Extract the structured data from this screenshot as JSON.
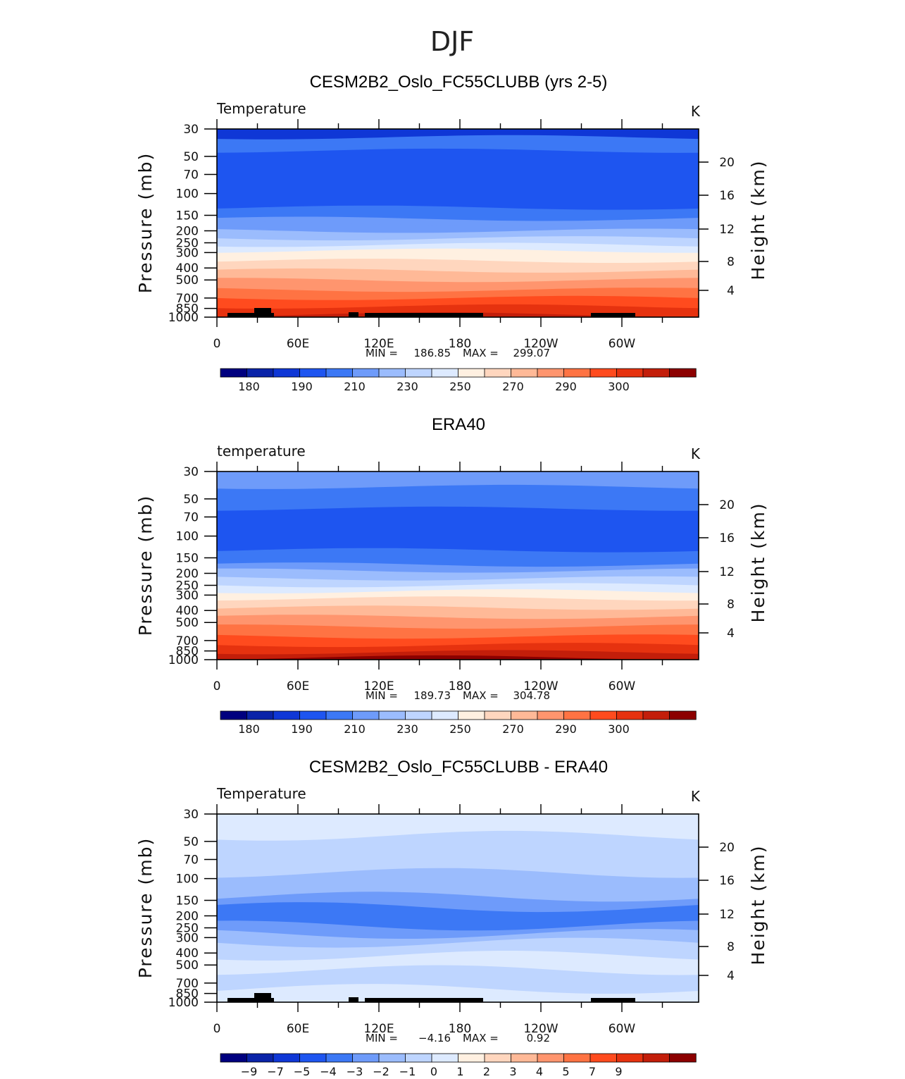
{
  "figure_title": "DJF",
  "palette": [
    "#00007f",
    "#0a23a8",
    "#0f37d6",
    "#1e55f0",
    "#3c78f5",
    "#6e9bfa",
    "#9bbcfd",
    "#bed5ff",
    "#ddeaff",
    "#fff0e1",
    "#ffd6be",
    "#ffb997",
    "#ff956e",
    "#ff7343",
    "#ff4b1e",
    "#e6320f",
    "#c31e0a",
    "#8c0000"
  ],
  "chart_data": [
    {
      "type": "contour",
      "title": "CESM2B2_Oslo_FC55CLUBB (yrs 2-5)",
      "variable_label": "Temperature",
      "units": "K",
      "ylabel": "Pressure (mb)",
      "ylabel_right": "Height (km)",
      "pressure_ticks": [
        "30",
        "50",
        "70",
        "100",
        "150",
        "200",
        "250",
        "300",
        "400",
        "500",
        "700",
        "850",
        "1000"
      ],
      "height_ticks": [
        "20",
        "16",
        "12",
        "8",
        "4"
      ],
      "longitude_ticks": [
        "0",
        "60E",
        "120E",
        "180",
        "120W",
        "60W"
      ],
      "stats": {
        "min_label": "MIN =",
        "min": "186.85",
        "max_label": "MAX =",
        "max": "299.07"
      },
      "colorbar_labels": [
        "180",
        "190",
        "210",
        "230",
        "250",
        "270",
        "290",
        "300"
      ],
      "band_levels": [
        2,
        4,
        3,
        4,
        5,
        5,
        6,
        7,
        8,
        9,
        10,
        11,
        12,
        13,
        14,
        15,
        16
      ],
      "band_plevels": [
        30,
        35,
        45,
        130,
        160,
        175,
        200,
        230,
        260,
        290,
        350,
        420,
        500,
        600,
        700,
        820,
        950,
        1000
      ]
    },
    {
      "type": "contour",
      "title": "ERA40",
      "variable_label": "temperature",
      "units": "K",
      "ylabel": "Pressure (mb)",
      "ylabel_right": "Height (km)",
      "pressure_ticks": [
        "30",
        "50",
        "70",
        "100",
        "150",
        "200",
        "250",
        "300",
        "400",
        "500",
        "700",
        "850",
        "1000"
      ],
      "height_ticks": [
        "20",
        "16",
        "12",
        "8",
        "4"
      ],
      "longitude_ticks": [
        "0",
        "60E",
        "120E",
        "180",
        "120W",
        "60W"
      ],
      "stats": {
        "min_label": "MIN =",
        "min": "189.73",
        "max_label": "MAX =",
        "max": "304.78"
      },
      "colorbar_labels": [
        "180",
        "190",
        "210",
        "230",
        "250",
        "270",
        "290",
        "300"
      ],
      "band_levels": [
        5,
        4,
        3,
        4,
        5,
        6,
        7,
        8,
        9,
        10,
        11,
        12,
        13,
        14,
        15,
        16,
        17
      ],
      "band_plevels": [
        30,
        40,
        60,
        130,
        170,
        190,
        220,
        250,
        280,
        320,
        380,
        450,
        540,
        650,
        760,
        870,
        960,
        1000
      ]
    },
    {
      "type": "contour",
      "title": "CESM2B2_Oslo_FC55CLUBB - ERA40",
      "variable_label": "Temperature",
      "units": "K",
      "ylabel": "Pressure (mb)",
      "ylabel_right": "Height (km)",
      "pressure_ticks": [
        "30",
        "50",
        "70",
        "100",
        "150",
        "200",
        "250",
        "300",
        "400",
        "500",
        "700",
        "850",
        "1000"
      ],
      "height_ticks": [
        "20",
        "16",
        "12",
        "8",
        "4"
      ],
      "longitude_ticks": [
        "0",
        "60E",
        "120E",
        "180",
        "120W",
        "60W"
      ],
      "stats": {
        "min_label": "MIN =",
        "min": "−4.16",
        "max_label": "MAX =",
        "max": "0.92"
      },
      "colorbar_labels": [
        "−9",
        "−7",
        "−5",
        "−4",
        "−3",
        "−2",
        "−1",
        "0",
        "1",
        "2",
        "3",
        "4",
        "5",
        "7",
        "9"
      ],
      "band_levels": [
        8,
        7,
        6,
        5,
        4,
        5,
        6,
        7,
        8,
        7,
        8
      ],
      "band_plevels": [
        30,
        45,
        90,
        140,
        170,
        240,
        280,
        330,
        420,
        550,
        780,
        1000
      ]
    }
  ]
}
